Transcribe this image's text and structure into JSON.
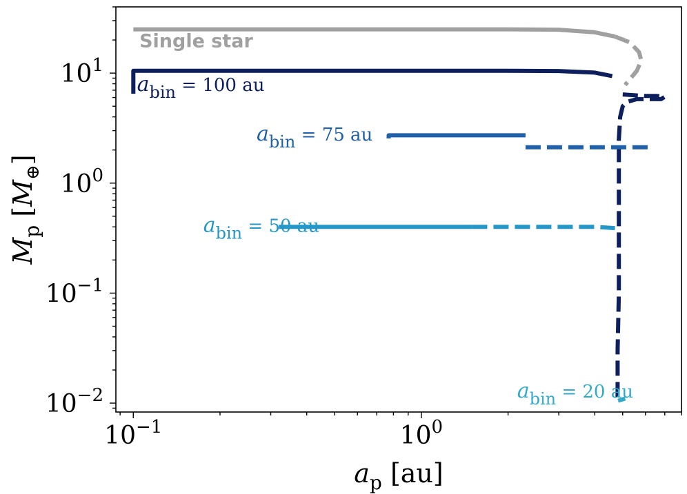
{
  "chart_data": {
    "type": "line",
    "title": "",
    "xlabel": {
      "main": "a",
      "sub": "p",
      "unit": "[au]"
    },
    "ylabel": {
      "main": "M",
      "sub": "p",
      "unit_open": "[",
      "unit_main": "M",
      "unit_sub": "⊕",
      "unit_close": "]"
    },
    "xscale": "log",
    "yscale": "log",
    "xlim": [
      0.087,
      8.0
    ],
    "ylim": [
      0.0083,
      40
    ],
    "grid": false,
    "xticks": [
      {
        "value": 0.1,
        "base": "10",
        "exp": "−1"
      },
      {
        "value": 1.0,
        "base": "10",
        "exp": "0"
      }
    ],
    "yticks": [
      {
        "value": 0.01,
        "base": "10",
        "exp": "−2"
      },
      {
        "value": 0.1,
        "base": "10",
        "exp": "−1"
      },
      {
        "value": 1.0,
        "base": "10",
        "exp": "0"
      },
      {
        "value": 10.0,
        "base": "10",
        "exp": "1"
      }
    ],
    "series": [
      {
        "name": "Single star",
        "color": "#a0a0a0",
        "solid": [
          [
            0.1,
            25
          ],
          [
            0.5,
            25
          ],
          [
            1.0,
            25
          ],
          [
            2.0,
            25
          ],
          [
            3.0,
            24.8
          ],
          [
            4.0,
            23.5
          ],
          [
            4.7,
            21.5
          ]
        ],
        "dashed": [
          [
            4.7,
            21.5
          ],
          [
            5.3,
            19
          ],
          [
            5.7,
            15.5
          ],
          [
            5.8,
            13
          ],
          [
            5.6,
            10.5
          ],
          [
            5.3,
            8.8
          ],
          [
            5.1,
            7.8
          ]
        ],
        "label": {
          "text": "Single star",
          "x": 0.105,
          "y": 17.2,
          "style": "bold"
        }
      },
      {
        "name": "a_bin = 100 au",
        "color": "#0d1f5c",
        "solid": [
          [
            0.1,
            6.5
          ],
          [
            0.1,
            10.5
          ],
          [
            0.5,
            10.5
          ],
          [
            1.0,
            10.5
          ],
          [
            2.0,
            10.5
          ],
          [
            3.0,
            10.45
          ],
          [
            4.0,
            10.1
          ],
          [
            4.6,
            9.4
          ]
        ],
        "dashed": [
          [
            5.0,
            6.4
          ],
          [
            6.0,
            6.2
          ],
          [
            6.6,
            6.2
          ],
          [
            7.0,
            6.1
          ],
          [
            6.8,
            5.8
          ],
          [
            6.2,
            5.8
          ],
          [
            5.6,
            5.8
          ],
          [
            5.2,
            5.5
          ],
          [
            5.0,
            5.0
          ],
          [
            4.9,
            4.0
          ],
          [
            4.85,
            2.5
          ],
          [
            4.85,
            1.0
          ],
          [
            4.85,
            0.3
          ],
          [
            4.85,
            0.1
          ],
          [
            4.8,
            0.03
          ],
          [
            4.8,
            0.0105
          ]
        ],
        "label": {
          "text_sub": "bin",
          "text_rest": " = 100 au",
          "x": 0.103,
          "y": 6.9
        }
      },
      {
        "name": "a_bin = 75 au",
        "color": "#2060a8",
        "solid": [
          [
            0.77,
            2.55
          ],
          [
            0.77,
            2.72
          ],
          [
            1.2,
            2.72
          ],
          [
            2.3,
            2.72
          ]
        ],
        "dashed": [
          [
            2.3,
            2.12
          ],
          [
            3.0,
            2.12
          ],
          [
            4.0,
            2.12
          ],
          [
            5.0,
            2.12
          ],
          [
            6.2,
            2.12
          ]
        ],
        "label": {
          "text_sub": "bin",
          "text_rest": " = 75 au",
          "x": 0.4,
          "y": 2.43,
          "anchor": "end-offset"
        }
      },
      {
        "name": "a_bin = 50 au",
        "color": "#2496c8",
        "solid": [
          [
            0.32,
            0.4
          ],
          [
            0.5,
            0.4
          ],
          [
            1.0,
            0.4
          ],
          [
            1.5,
            0.4
          ]
        ],
        "dashed": [
          [
            1.5,
            0.4
          ],
          [
            2.5,
            0.4
          ],
          [
            4.0,
            0.4
          ],
          [
            4.7,
            0.39
          ]
        ],
        "label": {
          "text_sub": "bin",
          "text_rest": " = 50 au",
          "x": 0.175,
          "y": 0.36
        }
      },
      {
        "name": "a_bin = 20 au",
        "color": "#33aac8",
        "solid": [
          [
            4.82,
            0.0105
          ],
          [
            5.1,
            0.011
          ]
        ],
        "dashed": [],
        "label": {
          "text_sub": "bin",
          "text_rest": " = 20 au",
          "x": 2.15,
          "y": 0.0112
        }
      }
    ]
  }
}
